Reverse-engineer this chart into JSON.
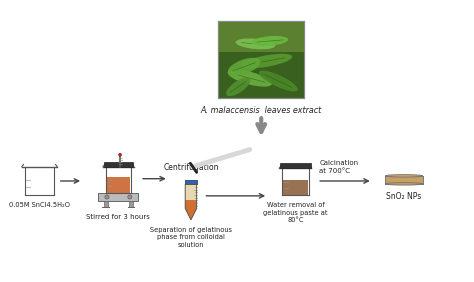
{
  "bg_color": "#ffffff",
  "plant_label": "A. malaccensis  leaves extract",
  "labels": [
    "0.05M SnCl4.5H₂O",
    "Stirred for 3 hours",
    "Centrifugation",
    "Separation of gelatinous\nphase from colloidal\nsolution",
    "Water removal of\ngelatinous paste at\n80°C",
    "Calcination\nat 700°C",
    "SnO₂ NPs"
  ],
  "liquid_orange": "#c8602a",
  "liquid_brown": "#8b5e3c",
  "tube_blue": "#3a5faa",
  "tube_beige": "#e8d8b0",
  "tube_orange": "#d07030",
  "arrow_color": "#444444",
  "hotplate_color": "#aaaaaa",
  "beaker_edge": "#555555",
  "petri_fill": "#c8a060"
}
